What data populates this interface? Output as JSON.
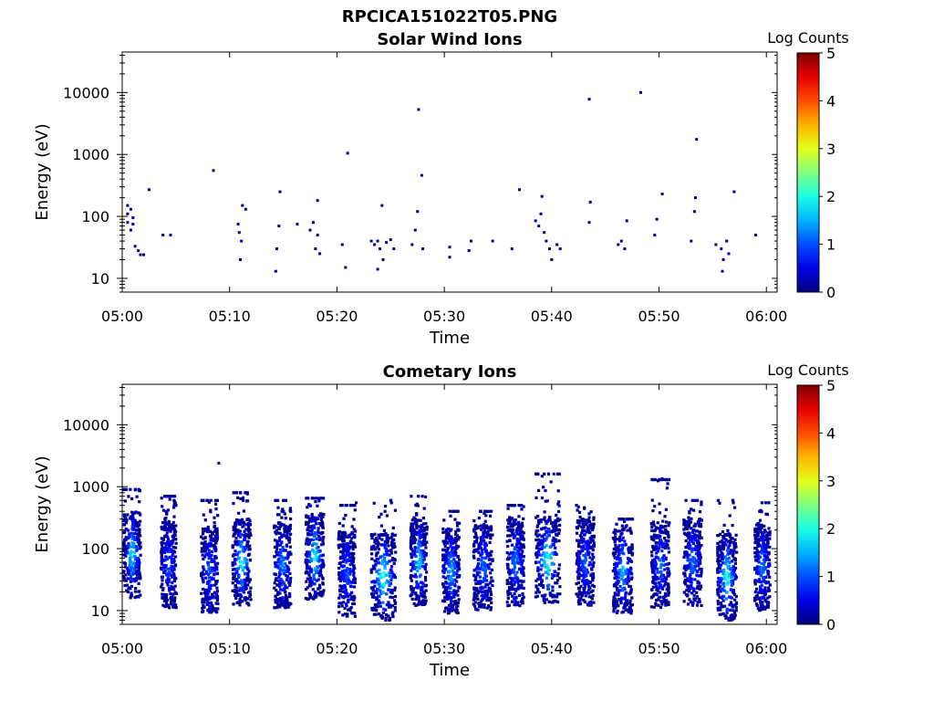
{
  "figure": {
    "file_title": "RPCICA151022T05.PNG"
  },
  "chart_data": [
    {
      "type": "heatmap",
      "title": "Solar Wind Ions",
      "xlabel": "Time",
      "ylabel": "Energy (eV)",
      "x_ticks": [
        "05:00",
        "05:10",
        "05:20",
        "05:30",
        "05:40",
        "05:50",
        "06:00"
      ],
      "xlim_minutes": [
        0,
        61
      ],
      "y_ticks": [
        "10",
        "100",
        "1000",
        "10000"
      ],
      "y_scale": "log",
      "ylim": [
        6,
        45000
      ],
      "colorbar": {
        "label": "Log Counts",
        "ticks": [
          "0",
          "1",
          "2",
          "3",
          "4",
          "5"
        ],
        "range": [
          0,
          5
        ],
        "colormap": "jet"
      },
      "points": [
        {
          "t": 0.5,
          "e": 150,
          "c": 0.1
        },
        {
          "t": 0.5,
          "e": 110,
          "c": 0.1
        },
        {
          "t": 0.5,
          "e": 80,
          "c": 0.15
        },
        {
          "t": 0.8,
          "e": 130,
          "c": 0.1
        },
        {
          "t": 0.8,
          "e": 60,
          "c": 0.1
        },
        {
          "t": 1.0,
          "e": 95,
          "c": 0.15
        },
        {
          "t": 1.0,
          "e": 75,
          "c": 0.1
        },
        {
          "t": 1.2,
          "e": 33,
          "c": 0.1
        },
        {
          "t": 1.5,
          "e": 28,
          "c": 0.1
        },
        {
          "t": 1.7,
          "e": 24,
          "c": 0.1
        },
        {
          "t": 2.0,
          "e": 24,
          "c": 0.1
        },
        {
          "t": 2.5,
          "e": 270,
          "c": 0.1
        },
        {
          "t": 3.8,
          "e": 50,
          "c": 0.1
        },
        {
          "t": 4.5,
          "e": 50,
          "c": 0.1
        },
        {
          "t": 8.5,
          "e": 550,
          "c": 0.1
        },
        {
          "t": 10.8,
          "e": 75,
          "c": 0.1
        },
        {
          "t": 10.9,
          "e": 55,
          "c": 0.1
        },
        {
          "t": 11.1,
          "e": 40,
          "c": 0.1
        },
        {
          "t": 11.2,
          "e": 150,
          "c": 0.1
        },
        {
          "t": 11.5,
          "e": 130,
          "c": 0.1
        },
        {
          "t": 11.0,
          "e": 20,
          "c": 0.1
        },
        {
          "t": 14.3,
          "e": 13,
          "c": 0.1
        },
        {
          "t": 14.4,
          "e": 30,
          "c": 0.1
        },
        {
          "t": 14.6,
          "e": 70,
          "c": 0.1
        },
        {
          "t": 14.7,
          "e": 250,
          "c": 0.1
        },
        {
          "t": 16.3,
          "e": 75,
          "c": 0.1
        },
        {
          "t": 17.5,
          "e": 60,
          "c": 0.15
        },
        {
          "t": 17.8,
          "e": 80,
          "c": 0.15
        },
        {
          "t": 18.0,
          "e": 30,
          "c": 0.1
        },
        {
          "t": 18.2,
          "e": 180,
          "c": 0.1
        },
        {
          "t": 18.2,
          "e": 50,
          "c": 0.1
        },
        {
          "t": 18.4,
          "e": 25,
          "c": 0.1
        },
        {
          "t": 20.5,
          "e": 35,
          "c": 0.1
        },
        {
          "t": 20.8,
          "e": 15,
          "c": 0.1
        },
        {
          "t": 21.0,
          "e": 1050,
          "c": 0.1
        },
        {
          "t": 23.2,
          "e": 40,
          "c": 0.2
        },
        {
          "t": 23.5,
          "e": 35,
          "c": 0.2
        },
        {
          "t": 23.8,
          "e": 40,
          "c": 0.15
        },
        {
          "t": 24.0,
          "e": 30,
          "c": 0.15
        },
        {
          "t": 24.2,
          "e": 150,
          "c": 0.1
        },
        {
          "t": 24.3,
          "e": 20,
          "c": 0.1
        },
        {
          "t": 24.6,
          "e": 38,
          "c": 0.2
        },
        {
          "t": 25.0,
          "e": 42,
          "c": 0.15
        },
        {
          "t": 25.3,
          "e": 30,
          "c": 0.1
        },
        {
          "t": 23.8,
          "e": 14,
          "c": 0.1
        },
        {
          "t": 27.0,
          "e": 35,
          "c": 0.1
        },
        {
          "t": 27.3,
          "e": 60,
          "c": 0.1
        },
        {
          "t": 27.5,
          "e": 120,
          "c": 0.1
        },
        {
          "t": 27.6,
          "e": 5300,
          "c": 0.1
        },
        {
          "t": 27.9,
          "e": 460,
          "c": 0.1
        },
        {
          "t": 28.0,
          "e": 30,
          "c": 0.1
        },
        {
          "t": 30.5,
          "e": 22,
          "c": 0.1
        },
        {
          "t": 30.5,
          "e": 32,
          "c": 0.1
        },
        {
          "t": 32.3,
          "e": 28,
          "c": 0.1
        },
        {
          "t": 32.5,
          "e": 40,
          "c": 0.1
        },
        {
          "t": 34.5,
          "e": 40,
          "c": 0.1
        },
        {
          "t": 36.3,
          "e": 30,
          "c": 0.1
        },
        {
          "t": 37.0,
          "e": 270,
          "c": 0.1
        },
        {
          "t": 38.5,
          "e": 85,
          "c": 0.15
        },
        {
          "t": 38.8,
          "e": 70,
          "c": 0.2
        },
        {
          "t": 39.0,
          "e": 110,
          "c": 0.15
        },
        {
          "t": 39.3,
          "e": 55,
          "c": 0.15
        },
        {
          "t": 39.5,
          "e": 40,
          "c": 0.1
        },
        {
          "t": 39.8,
          "e": 30,
          "c": 0.1
        },
        {
          "t": 40.0,
          "e": 20,
          "c": 0.1
        },
        {
          "t": 39.1,
          "e": 210,
          "c": 0.1
        },
        {
          "t": 40.5,
          "e": 35,
          "c": 0.1
        },
        {
          "t": 40.8,
          "e": 30,
          "c": 0.1
        },
        {
          "t": 43.5,
          "e": 7800,
          "c": 0.1
        },
        {
          "t": 43.6,
          "e": 170,
          "c": 0.1
        },
        {
          "t": 43.5,
          "e": 80,
          "c": 0.1
        },
        {
          "t": 46.2,
          "e": 35,
          "c": 0.1
        },
        {
          "t": 46.5,
          "e": 40,
          "c": 0.1
        },
        {
          "t": 46.8,
          "e": 30,
          "c": 0.1
        },
        {
          "t": 47.0,
          "e": 85,
          "c": 0.1
        },
        {
          "t": 48.3,
          "e": 10000,
          "c": 0.1
        },
        {
          "t": 49.6,
          "e": 50,
          "c": 0.1
        },
        {
          "t": 49.8,
          "e": 90,
          "c": 0.1
        },
        {
          "t": 50.3,
          "e": 230,
          "c": 0.1
        },
        {
          "t": 53.0,
          "e": 40,
          "c": 0.1
        },
        {
          "t": 53.3,
          "e": 120,
          "c": 0.1
        },
        {
          "t": 53.4,
          "e": 200,
          "c": 0.1
        },
        {
          "t": 53.5,
          "e": 1750,
          "c": 0.1
        },
        {
          "t": 55.3,
          "e": 35,
          "c": 0.1
        },
        {
          "t": 55.8,
          "e": 30,
          "c": 0.15
        },
        {
          "t": 56.0,
          "e": 20,
          "c": 0.1
        },
        {
          "t": 56.3,
          "e": 40,
          "c": 0.1
        },
        {
          "t": 56.5,
          "e": 25,
          "c": 0.1
        },
        {
          "t": 55.9,
          "e": 13,
          "c": 0.1
        },
        {
          "t": 57.0,
          "e": 250,
          "c": 0.1
        },
        {
          "t": 59.0,
          "e": 50,
          "c": 0.1
        }
      ]
    },
    {
      "type": "heatmap",
      "title": "Cometary Ions",
      "xlabel": "Time",
      "ylabel": "Energy (eV)",
      "x_ticks": [
        "05:00",
        "05:10",
        "05:20",
        "05:30",
        "05:40",
        "05:50",
        "06:00"
      ],
      "xlim_minutes": [
        0,
        61
      ],
      "y_ticks": [
        "10",
        "100",
        "1000",
        "10000"
      ],
      "y_scale": "log",
      "ylim": [
        6,
        45000
      ],
      "colorbar": {
        "label": "Log Counts",
        "ticks": [
          "0",
          "1",
          "2",
          "3",
          "4",
          "5"
        ],
        "range": [
          0,
          5
        ],
        "colormap": "jet"
      },
      "bursts": [
        {
          "t": 0.8,
          "w": 1.3,
          "peak_e": 80,
          "peak_c": 1.8,
          "top_e": 900
        },
        {
          "t": 4.2,
          "w": 1.2,
          "peak_e": 55,
          "peak_c": 1.0,
          "top_e": 700
        },
        {
          "t": 8.0,
          "w": 1.3,
          "peak_e": 45,
          "peak_c": 1.0,
          "top_e": 600
        },
        {
          "t": 11.0,
          "w": 1.4,
          "peak_e": 60,
          "peak_c": 1.9,
          "top_e": 800
        },
        {
          "t": 14.8,
          "w": 1.3,
          "peak_e": 55,
          "peak_c": 1.3,
          "top_e": 600
        },
        {
          "t": 17.8,
          "w": 1.4,
          "peak_e": 75,
          "peak_c": 1.9,
          "top_e": 650
        },
        {
          "t": 20.8,
          "w": 1.3,
          "peak_e": 40,
          "peak_c": 1.0,
          "top_e": 500
        },
        {
          "t": 24.2,
          "w": 1.9,
          "peak_e": 35,
          "peak_c": 2.1,
          "top_e": 600
        },
        {
          "t": 27.5,
          "w": 1.3,
          "peak_e": 60,
          "peak_c": 1.7,
          "top_e": 700
        },
        {
          "t": 30.5,
          "w": 1.3,
          "peak_e": 45,
          "peak_c": 1.5,
          "top_e": 400
        },
        {
          "t": 33.5,
          "w": 1.5,
          "peak_e": 50,
          "peak_c": 1.1,
          "top_e": 400
        },
        {
          "t": 36.5,
          "w": 1.3,
          "peak_e": 60,
          "peak_c": 1.2,
          "top_e": 500
        },
        {
          "t": 39.5,
          "w": 1.9,
          "peak_e": 65,
          "peak_c": 2.1,
          "top_e": 1600
        },
        {
          "t": 43.0,
          "w": 1.4,
          "peak_e": 60,
          "peak_c": 1.1,
          "top_e": 500
        },
        {
          "t": 46.5,
          "w": 1.5,
          "peak_e": 45,
          "peak_c": 1.6,
          "top_e": 300
        },
        {
          "t": 50.0,
          "w": 1.4,
          "peak_e": 55,
          "peak_c": 1.2,
          "top_e": 1300
        },
        {
          "t": 53.0,
          "w": 1.4,
          "peak_e": 60,
          "peak_c": 1.2,
          "top_e": 600
        },
        {
          "t": 56.2,
          "w": 1.5,
          "peak_e": 35,
          "peak_c": 2.0,
          "top_e": 600
        },
        {
          "t": 59.5,
          "w": 1.2,
          "peak_e": 50,
          "peak_c": 1.2,
          "top_e": 550
        }
      ],
      "points": [
        {
          "t": 9.0,
          "e": 2400,
          "c": 0.1
        },
        {
          "t": 21.8,
          "e": 550,
          "c": 0.1
        },
        {
          "t": 40.2,
          "e": 1600,
          "c": 0.1
        },
        {
          "t": 50.3,
          "e": 1350,
          "c": 0.1
        }
      ]
    }
  ]
}
